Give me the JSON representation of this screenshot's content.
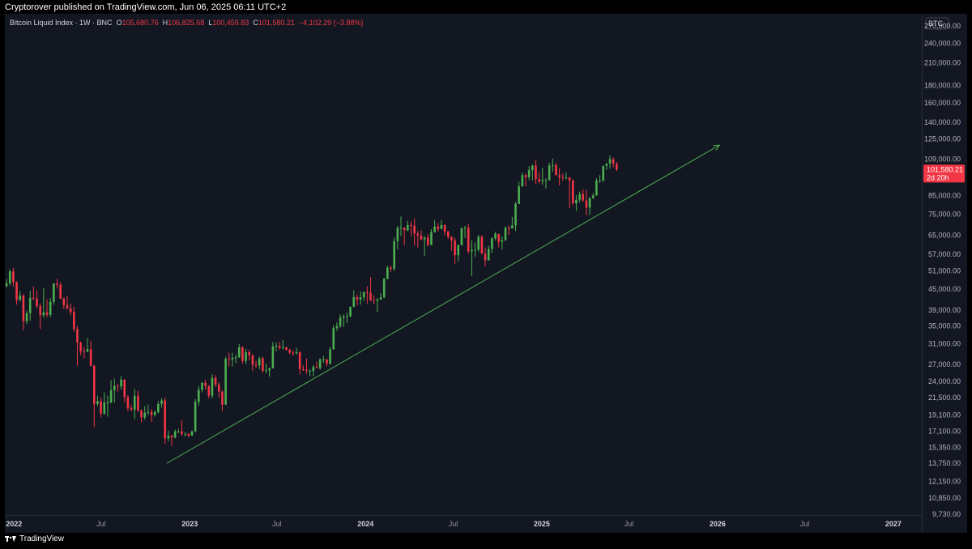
{
  "header": {
    "published": "Cryptorover published on TradingView.com, Jun 06, 2025 06:11 UTC+2"
  },
  "legend": {
    "symbol": "Bitcoin Liquid Index · 1W · BNC",
    "open_label": "O",
    "open": "105,680.76",
    "high_label": "H",
    "high": "106,825.68",
    "low_label": "L",
    "low": "100,459.83",
    "close_label": "C",
    "close": "101,580.21",
    "change": "−4,102.29 (−3.88%)"
  },
  "price_axis": {
    "currency": "BTC",
    "ticks": [
      "270,000.00",
      "240,000.00",
      "210,000.00",
      "180,000.00",
      "160,000.00",
      "140,000.00",
      "125,000.00",
      "109,000.00",
      "85,000.00",
      "75,000.00",
      "65,000.00",
      "57,000.00",
      "51,000.00",
      "45,000.00",
      "39,000.00",
      "35,000.00",
      "31,000.00",
      "27,000.00",
      "24,000.00",
      "21,500.00",
      "19,100.00",
      "17,100.00",
      "15,350.00",
      "13,750.00",
      "12,150.00",
      "10,850.00",
      "9,730.00"
    ],
    "last_price": "101,580.21",
    "countdown": "2d 20h"
  },
  "time_axis": {
    "ticks": [
      "2022",
      "Jul",
      "2023",
      "Jul",
      "2024",
      "Jul",
      "2025",
      "Jul",
      "2026",
      "Jul",
      "2027"
    ]
  },
  "footer": {
    "brand": "TradingView"
  },
  "colors": {
    "up": "#26a69a",
    "up_candle": "#4caf50",
    "down": "#f23645",
    "trendline": "#4caf50",
    "background": "#131722"
  },
  "chart_data": {
    "type": "candlestick",
    "interval": "1W",
    "scale": "log",
    "y_range": [
      9730,
      270000
    ],
    "x_range": [
      "2021-12-13",
      "2027-03-01"
    ],
    "trendline": {
      "start": [
        "2022-11-14",
        13750
      ],
      "end": [
        "2026-01-05",
        120000
      ]
    },
    "candles": [
      [
        "2021-12-13",
        46000,
        48200,
        45500,
        46800
      ],
      [
        "2021-12-20",
        46800,
        51500,
        46200,
        50800
      ],
      [
        "2021-12-27",
        50800,
        52000,
        45800,
        47200
      ],
      [
        "2022-01-03",
        47200,
        47500,
        40500,
        41800
      ],
      [
        "2022-01-10",
        41800,
        44400,
        41400,
        43100
      ],
      [
        "2022-01-17",
        43100,
        43500,
        34000,
        36200
      ],
      [
        "2022-01-24",
        36200,
        38900,
        35500,
        38200
      ],
      [
        "2022-01-31",
        38200,
        44500,
        36300,
        42400
      ],
      [
        "2022-02-07",
        42400,
        45800,
        41800,
        42200
      ],
      [
        "2022-02-14",
        42200,
        44600,
        39500,
        40100
      ],
      [
        "2022-02-21",
        40100,
        40800,
        34300,
        37700
      ],
      [
        "2022-02-28",
        37700,
        45400,
        37000,
        38400
      ],
      [
        "2022-03-07",
        38400,
        42000,
        37200,
        37800
      ],
      [
        "2022-03-14",
        37800,
        42400,
        37200,
        41300
      ],
      [
        "2022-03-21",
        41300,
        46500,
        40500,
        46800
      ],
      [
        "2022-03-28",
        46800,
        48200,
        45200,
        46400
      ],
      [
        "2022-04-04",
        46400,
        47200,
        42100,
        42200
      ],
      [
        "2022-04-11",
        42200,
        42500,
        39300,
        40400
      ],
      [
        "2022-04-18",
        40400,
        42900,
        39200,
        39500
      ],
      [
        "2022-04-25",
        39500,
        40800,
        37700,
        38500
      ],
      [
        "2022-05-02",
        38500,
        39900,
        33700,
        34300
      ],
      [
        "2022-05-09",
        34300,
        35000,
        26700,
        31300
      ],
      [
        "2022-05-16",
        31300,
        31500,
        28700,
        29500
      ],
      [
        "2022-05-23",
        29500,
        30400,
        28100,
        29400
      ],
      [
        "2022-05-30",
        29400,
        32300,
        29300,
        29900
      ],
      [
        "2022-06-06",
        29900,
        31700,
        26600,
        26700
      ],
      [
        "2022-06-13",
        26700,
        26900,
        17600,
        20600
      ],
      [
        "2022-06-20",
        20600,
        21800,
        20300,
        21000
      ],
      [
        "2022-06-27",
        21000,
        21500,
        18800,
        19300
      ],
      [
        "2022-07-04",
        19300,
        22300,
        19100,
        20800
      ],
      [
        "2022-07-11",
        20800,
        21800,
        18900,
        20800
      ],
      [
        "2022-07-18",
        20800,
        24200,
        20700,
        22600
      ],
      [
        "2022-07-25",
        22600,
        24500,
        20800,
        23300
      ],
      [
        "2022-08-01",
        23300,
        23600,
        22400,
        23200
      ],
      [
        "2022-08-08",
        23200,
        24900,
        22700,
        24300
      ],
      [
        "2022-08-15",
        24300,
        24400,
        20800,
        21600
      ],
      [
        "2022-08-22",
        21600,
        21900,
        19600,
        20000
      ],
      [
        "2022-08-29",
        20000,
        20500,
        19600,
        19800
      ],
      [
        "2022-09-05",
        19800,
        22800,
        18600,
        21800
      ],
      [
        "2022-09-12",
        21800,
        22500,
        19500,
        19700
      ],
      [
        "2022-09-19",
        19700,
        19900,
        18200,
        18800
      ],
      [
        "2022-09-26",
        18800,
        20300,
        18500,
        19400
      ],
      [
        "2022-10-03",
        19400,
        20500,
        19100,
        19500
      ],
      [
        "2022-10-10",
        19500,
        19900,
        18200,
        19100
      ],
      [
        "2022-10-17",
        19100,
        19700,
        18900,
        19500
      ],
      [
        "2022-10-24",
        19500,
        21000,
        19300,
        20600
      ],
      [
        "2022-10-31",
        20600,
        21400,
        20100,
        21100
      ],
      [
        "2022-11-07",
        21100,
        21500,
        15700,
        16300
      ],
      [
        "2022-11-14",
        16300,
        17200,
        16000,
        16600
      ],
      [
        "2022-11-21",
        16600,
        16700,
        15500,
        16400
      ],
      [
        "2022-11-28",
        16400,
        17300,
        16300,
        17100
      ],
      [
        "2022-12-05",
        17100,
        17400,
        16900,
        17100
      ],
      [
        "2022-12-12",
        17100,
        18400,
        16600,
        16800
      ],
      [
        "2022-12-19",
        16800,
        17000,
        16500,
        16800
      ],
      [
        "2022-12-26",
        16800,
        16900,
        16400,
        16600
      ],
      [
        "2023-01-02",
        16600,
        17200,
        16600,
        17100
      ],
      [
        "2023-01-09",
        17100,
        21300,
        17000,
        20900
      ],
      [
        "2023-01-16",
        20900,
        23300,
        20400,
        22700
      ],
      [
        "2023-01-23",
        22700,
        23900,
        22300,
        23800
      ],
      [
        "2023-01-30",
        23800,
        24300,
        22700,
        23300
      ],
      [
        "2023-02-06",
        23300,
        23400,
        21400,
        21800
      ],
      [
        "2023-02-13",
        21800,
        25200,
        21400,
        24600
      ],
      [
        "2023-02-20",
        24600,
        25100,
        23100,
        23500
      ],
      [
        "2023-02-27",
        23500,
        23900,
        21500,
        22400
      ],
      [
        "2023-03-06",
        22400,
        22600,
        19600,
        20500
      ],
      [
        "2023-03-13",
        20500,
        28400,
        20500,
        28000
      ],
      [
        "2023-03-20",
        28000,
        29200,
        26600,
        27900
      ],
      [
        "2023-03-27",
        27900,
        29200,
        26600,
        28200
      ],
      [
        "2023-04-03",
        28200,
        28800,
        27200,
        28300
      ],
      [
        "2023-04-10",
        28300,
        31000,
        28200,
        30300
      ],
      [
        "2023-04-17",
        30300,
        30500,
        27100,
        27600
      ],
      [
        "2023-04-24",
        27600,
        30000,
        27000,
        29300
      ],
      [
        "2023-05-01",
        29300,
        29800,
        27700,
        28700
      ],
      [
        "2023-05-08",
        28700,
        28900,
        25800,
        26900
      ],
      [
        "2023-05-15",
        26900,
        27600,
        26400,
        26800
      ],
      [
        "2023-05-22",
        26800,
        28400,
        26100,
        28100
      ],
      [
        "2023-05-29",
        28100,
        28400,
        25500,
        25800
      ],
      [
        "2023-06-05",
        25800,
        27100,
        25400,
        25900
      ],
      [
        "2023-06-12",
        25900,
        26100,
        24800,
        26300
      ],
      [
        "2023-06-19",
        26300,
        31400,
        26200,
        30500
      ],
      [
        "2023-06-26",
        30500,
        31300,
        29500,
        30600
      ],
      [
        "2023-07-03",
        30600,
        31400,
        29800,
        30200
      ],
      [
        "2023-07-10",
        30200,
        31800,
        29900,
        30300
      ],
      [
        "2023-07-17",
        30300,
        30400,
        29600,
        29800
      ],
      [
        "2023-07-24",
        29800,
        30000,
        28900,
        29200
      ],
      [
        "2023-07-31",
        29200,
        29700,
        28600,
        29100
      ],
      [
        "2023-08-07",
        29100,
        30200,
        28800,
        29300
      ],
      [
        "2023-08-14",
        29300,
        29500,
        25200,
        26100
      ],
      [
        "2023-08-21",
        26100,
        26800,
        25800,
        26000
      ],
      [
        "2023-08-28",
        26000,
        28100,
        25300,
        25800
      ],
      [
        "2023-09-04",
        25800,
        26100,
        24900,
        25800
      ],
      [
        "2023-09-11",
        25800,
        26800,
        24900,
        26500
      ],
      [
        "2023-09-18",
        26500,
        27500,
        26300,
        26300
      ],
      [
        "2023-09-25",
        26300,
        28100,
        26000,
        27900
      ],
      [
        "2023-10-02",
        27900,
        28600,
        27200,
        27900
      ],
      [
        "2023-10-09",
        27900,
        28000,
        26600,
        27100
      ],
      [
        "2023-10-16",
        27100,
        30400,
        26900,
        29900
      ],
      [
        "2023-10-23",
        29900,
        35200,
        29800,
        34500
      ],
      [
        "2023-10-30",
        34500,
        35900,
        33900,
        35000
      ],
      [
        "2023-11-06",
        35000,
        37900,
        34600,
        37100
      ],
      [
        "2023-11-13",
        37100,
        37900,
        34800,
        37400
      ],
      [
        "2023-11-20",
        37400,
        38400,
        35700,
        37400
      ],
      [
        "2023-11-27",
        37400,
        40000,
        37200,
        39900
      ],
      [
        "2023-12-04",
        39900,
        44700,
        39800,
        42600
      ],
      [
        "2023-12-11",
        42600,
        43400,
        40200,
        41900
      ],
      [
        "2023-12-18",
        41900,
        44300,
        40500,
        42600
      ],
      [
        "2023-12-25",
        42600,
        43800,
        41500,
        44200
      ],
      [
        "2024-01-01",
        44200,
        45900,
        40800,
        43900
      ],
      [
        "2024-01-08",
        43900,
        48900,
        41500,
        41700
      ],
      [
        "2024-01-15",
        41700,
        43100,
        40600,
        41600
      ],
      [
        "2024-01-22",
        41600,
        42300,
        38500,
        42000
      ],
      [
        "2024-01-29",
        42000,
        43800,
        41800,
        42600
      ],
      [
        "2024-02-05",
        42600,
        48600,
        42300,
        48300
      ],
      [
        "2024-02-12",
        48300,
        52800,
        48100,
        52100
      ],
      [
        "2024-02-19",
        52100,
        52900,
        50600,
        51700
      ],
      [
        "2024-02-26",
        51700,
        64000,
        51000,
        62400
      ],
      [
        "2024-03-04",
        62400,
        69200,
        59000,
        68300
      ],
      [
        "2024-03-11",
        68300,
        73800,
        64500,
        68400
      ],
      [
        "2024-03-18",
        68400,
        68600,
        60800,
        67200
      ],
      [
        "2024-03-25",
        67200,
        71600,
        66700,
        69600
      ],
      [
        "2024-04-01",
        69600,
        71300,
        64500,
        69300
      ],
      [
        "2024-04-08",
        69300,
        72800,
        60600,
        65700
      ],
      [
        "2024-04-15",
        65700,
        66900,
        59700,
        64900
      ],
      [
        "2024-04-22",
        64900,
        67200,
        62800,
        63100
      ],
      [
        "2024-04-29",
        63100,
        64500,
        56500,
        63900
      ],
      [
        "2024-05-06",
        63900,
        65500,
        60200,
        60800
      ],
      [
        "2024-05-13",
        60800,
        67700,
        60700,
        66300
      ],
      [
        "2024-05-20",
        66300,
        71900,
        66100,
        68900
      ],
      [
        "2024-05-27",
        68900,
        70600,
        66600,
        67800
      ],
      [
        "2024-06-03",
        67800,
        71900,
        67600,
        69600
      ],
      [
        "2024-06-10",
        69600,
        70000,
        65000,
        66600
      ],
      [
        "2024-06-17",
        66600,
        66900,
        63400,
        64300
      ],
      [
        "2024-06-24",
        64300,
        64500,
        58400,
        62700
      ],
      [
        "2024-07-01",
        62700,
        63800,
        53500,
        56700
      ],
      [
        "2024-07-08",
        56700,
        60900,
        54300,
        60800
      ],
      [
        "2024-07-15",
        60800,
        68300,
        60600,
        68200
      ],
      [
        "2024-07-22",
        68200,
        69300,
        63700,
        68300
      ],
      [
        "2024-07-29",
        68300,
        70000,
        57300,
        58200
      ],
      [
        "2024-08-05",
        58200,
        62700,
        49100,
        58700
      ],
      [
        "2024-08-12",
        58700,
        61800,
        56100,
        58900
      ],
      [
        "2024-08-19",
        58900,
        65000,
        58100,
        64300
      ],
      [
        "2024-08-26",
        64300,
        64900,
        57200,
        57300
      ],
      [
        "2024-09-02",
        57300,
        59800,
        52600,
        54800
      ],
      [
        "2024-09-09",
        54800,
        60600,
        54600,
        59200
      ],
      [
        "2024-09-16",
        59200,
        64100,
        57600,
        63600
      ],
      [
        "2024-09-23",
        63600,
        66500,
        62700,
        65600
      ],
      [
        "2024-09-30",
        65600,
        65600,
        59800,
        62100
      ],
      [
        "2024-10-07",
        62100,
        64500,
        58900,
        62800
      ],
      [
        "2024-10-14",
        62800,
        69000,
        62500,
        68400
      ],
      [
        "2024-10-21",
        68400,
        69500,
        65100,
        68000
      ],
      [
        "2024-10-28",
        68000,
        73600,
        68000,
        69400
      ],
      [
        "2024-11-04",
        69400,
        81500,
        66800,
        80400
      ],
      [
        "2024-11-11",
        80400,
        93400,
        80300,
        90600
      ],
      [
        "2024-11-18",
        90600,
        99500,
        90400,
        97900
      ],
      [
        "2024-11-25",
        97900,
        98700,
        90800,
        96400
      ],
      [
        "2024-12-02",
        96400,
        104000,
        94500,
        101100
      ],
      [
        "2024-12-09",
        101100,
        105100,
        94200,
        104400
      ],
      [
        "2024-12-16",
        104400,
        108300,
        92200,
        95200
      ],
      [
        "2024-12-23",
        95200,
        99900,
        92500,
        93700
      ],
      [
        "2024-12-30",
        93700,
        102700,
        91600,
        94500
      ],
      [
        "2025-01-06",
        94500,
        95700,
        89200,
        94500
      ],
      [
        "2025-01-13",
        94500,
        106400,
        94300,
        104400
      ],
      [
        "2025-01-20",
        104400,
        109400,
        100000,
        104700
      ],
      [
        "2025-01-27",
        104700,
        106400,
        97800,
        97700
      ],
      [
        "2025-02-03",
        97700,
        102500,
        91200,
        96500
      ],
      [
        "2025-02-10",
        96500,
        98800,
        94100,
        96100
      ],
      [
        "2025-02-17",
        96100,
        99400,
        94900,
        96300
      ],
      [
        "2025-02-24",
        96300,
        96500,
        78200,
        94300
      ],
      [
        "2025-03-03",
        94300,
        95000,
        80000,
        80700
      ],
      [
        "2025-03-10",
        80700,
        85300,
        76600,
        82600
      ],
      [
        "2025-03-17",
        82600,
        87400,
        81200,
        86000
      ],
      [
        "2025-03-24",
        86000,
        88700,
        81600,
        82300
      ],
      [
        "2025-03-31",
        82300,
        88500,
        74400,
        78400
      ],
      [
        "2025-04-07",
        78400,
        84000,
        74600,
        83700
      ],
      [
        "2025-04-14",
        83700,
        86400,
        83100,
        85100
      ],
      [
        "2025-04-21",
        85100,
        95700,
        85000,
        94300
      ],
      [
        "2025-04-28",
        94300,
        97800,
        92900,
        94300
      ],
      [
        "2025-05-05",
        94300,
        104300,
        93400,
        104200
      ],
      [
        "2025-05-12",
        104200,
        105800,
        101400,
        105900
      ],
      [
        "2025-05-19",
        105900,
        111900,
        102000,
        109000
      ],
      [
        "2025-05-26",
        109000,
        110300,
        103100,
        105700
      ],
      [
        "2025-06-02",
        105700,
        106800,
        100500,
        101580
      ]
    ]
  }
}
